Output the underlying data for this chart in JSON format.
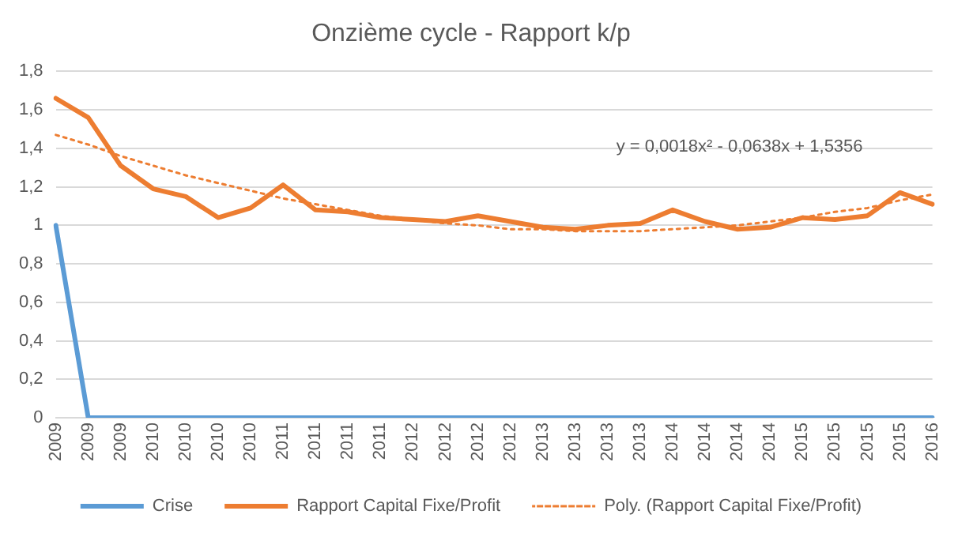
{
  "chart_data": {
    "type": "line",
    "title": "Onzième cycle - Rapport k/p",
    "categories": [
      "2009",
      "2009",
      "2009",
      "2010",
      "2010",
      "2010",
      "2010",
      "2011",
      "2011",
      "2011",
      "2011",
      "2012",
      "2012",
      "2012",
      "2012",
      "2013",
      "2013",
      "2013",
      "2013",
      "2014",
      "2014",
      "2014",
      "2014",
      "2015",
      "2015",
      "2015",
      "2015",
      "2016"
    ],
    "series": [
      {
        "name": "Crise",
        "color": "#5b9bd5",
        "values": [
          1,
          0,
          0,
          0,
          0,
          0,
          0,
          0,
          0,
          0,
          0,
          0,
          0,
          0,
          0,
          0,
          0,
          0,
          0,
          0,
          0,
          0,
          0,
          0,
          0,
          0,
          0,
          0
        ]
      },
      {
        "name": "Rapport Capital Fixe/Profit",
        "color": "#ed7d31",
        "values": [
          1.66,
          1.56,
          1.31,
          1.19,
          1.15,
          1.04,
          1.09,
          1.21,
          1.08,
          1.07,
          1.04,
          1.03,
          1.02,
          1.05,
          1.02,
          0.99,
          0.98,
          1.0,
          1.01,
          1.08,
          1.02,
          0.98,
          0.99,
          1.04,
          1.03,
          1.05,
          1.17,
          1.11
        ]
      },
      {
        "name": "Poly. (Rapport Capital Fixe/Profit)",
        "color": "#ed7d31",
        "line_style": "dotted",
        "values": [
          1.47,
          1.42,
          1.36,
          1.31,
          1.26,
          1.22,
          1.18,
          1.14,
          1.11,
          1.08,
          1.05,
          1.03,
          1.01,
          1.0,
          0.98,
          0.98,
          0.97,
          0.97,
          0.97,
          0.98,
          0.99,
          1.0,
          1.02,
          1.04,
          1.07,
          1.09,
          1.13,
          1.16
        ]
      }
    ],
    "ylim": [
      0,
      1.8
    ],
    "yticks": [
      0,
      {
        "value": 0.2,
        "label": "0,2"
      },
      {
        "value": 0.4,
        "label": "0,4"
      },
      {
        "value": 0.6,
        "label": "0,6"
      },
      {
        "value": 0.8,
        "label": "0,8"
      },
      1,
      {
        "value": 1.2,
        "label": "1,2"
      },
      {
        "value": 1.4,
        "label": "1,4"
      },
      {
        "value": 1.6,
        "label": "1,6"
      },
      {
        "value": 1.8,
        "label": "1,8"
      }
    ],
    "annotations": [
      "y = 0,0018x² - 0,0638x + 1,5356"
    ],
    "grid": "y",
    "legend": "bottom",
    "marker": "none",
    "line_style": "solid"
  }
}
